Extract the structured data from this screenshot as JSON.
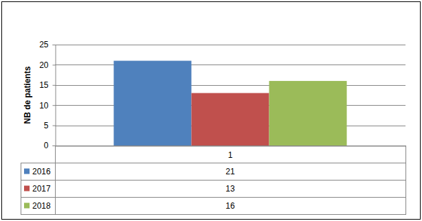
{
  "chart_data": {
    "type": "bar",
    "y_label": "NB de patients",
    "categories": [
      "1"
    ],
    "series": [
      {
        "name": "2016",
        "color": "#4f81bd",
        "values": [
          21
        ]
      },
      {
        "name": "2017",
        "color": "#c0504d",
        "values": [
          13
        ]
      },
      {
        "name": "2018",
        "color": "#9bbb59",
        "values": [
          16
        ]
      }
    ],
    "ylim": [
      0,
      25
    ],
    "yticks": [
      0,
      5,
      10,
      15,
      20,
      25
    ],
    "grid": true,
    "legend": "bottom",
    "data_labels": true
  }
}
